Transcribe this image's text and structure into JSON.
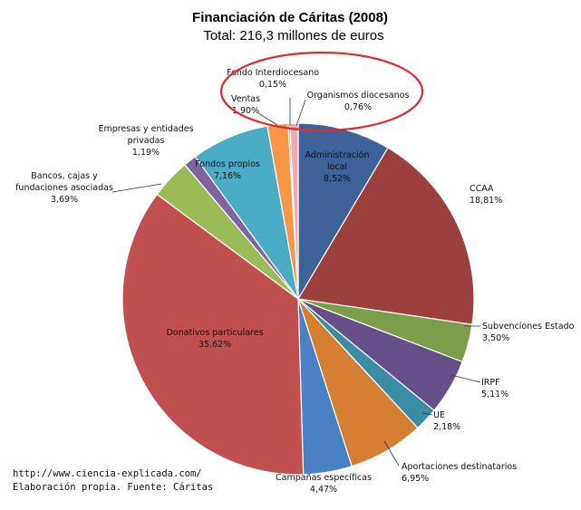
{
  "chart_data": {
    "type": "pie",
    "title": "Financiación de Cáritas (2008)",
    "subtitle": "Total: 216,3 millones de euros",
    "slices": [
      {
        "label": [
          "Administración",
          "local"
        ],
        "pct_label": "8,52%",
        "value": 8.52,
        "color": "#3E6399"
      },
      {
        "label": [
          "CCAA"
        ],
        "pct_label": "18,81%",
        "value": 18.81,
        "color": "#9C403D"
      },
      {
        "label": [
          "Subvenciones Estado"
        ],
        "pct_label": "3,50%",
        "value": 3.5,
        "color": "#7C9D49"
      },
      {
        "label": [
          "IRPF"
        ],
        "pct_label": "5,11%",
        "value": 5.11,
        "color": "#654F88"
      },
      {
        "label": [
          "UE"
        ],
        "pct_label": "2,18%",
        "value": 2.18,
        "color": "#3B8DA3"
      },
      {
        "label": [
          "Aportaciones destinatarios"
        ],
        "pct_label": "6,95%",
        "value": 6.95,
        "color": "#D57F33"
      },
      {
        "label": [
          "Campañas específicas"
        ],
        "pct_label": "4,47%",
        "value": 4.47,
        "color": "#4A80C4"
      },
      {
        "label": [
          "Donativos particulares"
        ],
        "pct_label": "35,62%",
        "value": 35.62,
        "color": "#C0504D"
      },
      {
        "label": [
          "Bancos, cajas y",
          "fundaciones asociadas"
        ],
        "pct_label": "3,69%",
        "value": 3.69,
        "color": "#9BBB59"
      },
      {
        "label": [
          "Empresas y entidades",
          "privadas"
        ],
        "pct_label": "1,19%",
        "value": 1.19,
        "color": "#8064A2"
      },
      {
        "label": [
          "Fondos propios"
        ],
        "pct_label": "7,16%",
        "value": 7.16,
        "color": "#4BACC6"
      },
      {
        "label": [
          "Ventas"
        ],
        "pct_label": "1,90%",
        "value": 1.9,
        "color": "#F79646"
      },
      {
        "label": [
          "Fondo Interdiocesano"
        ],
        "pct_label": "0,15%",
        "value": 0.15,
        "color": "#C0504D"
      },
      {
        "label": [
          "Organismos diocesanos"
        ],
        "pct_label": "0,76%",
        "value": 0.76,
        "color": "#F2A9B0"
      }
    ]
  },
  "footer": {
    "url": "http://www.ciencia-explicada.com/",
    "source": "Elaboración propia. Fuente: Cáritas"
  }
}
